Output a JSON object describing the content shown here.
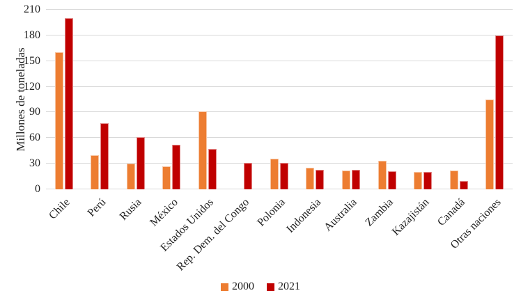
{
  "chart_data": {
    "type": "bar",
    "title": "",
    "ylabel": "Millones de toneladas",
    "categories": [
      "Chile",
      "Perú",
      "Rusia",
      "México",
      "Estados Unidos",
      "Rep. Dem. del Congo",
      "Polonia",
      "Indonesia",
      "Australia",
      "Zambia",
      "Kazajistán",
      "Canadá",
      "Otras naciones"
    ],
    "series": [
      {
        "name": "2000",
        "color": "#ED7D31",
        "values": [
          160,
          40,
          30,
          27,
          91,
          null,
          36,
          25,
          22,
          33,
          20,
          22,
          105
        ]
      },
      {
        "name": "2021",
        "color": "#C00000",
        "values": [
          200,
          77,
          61,
          52,
          47,
          31,
          31,
          23,
          23,
          21,
          20,
          10,
          180
        ]
      }
    ],
    "ylim": [
      0,
      210
    ],
    "yticks": [
      0,
      30,
      60,
      90,
      120,
      150,
      180,
      210
    ],
    "grid": true,
    "legend_position": "bottom",
    "colors": {
      "gridline": "#D9D9D9",
      "text": "#1f1f1f"
    }
  }
}
